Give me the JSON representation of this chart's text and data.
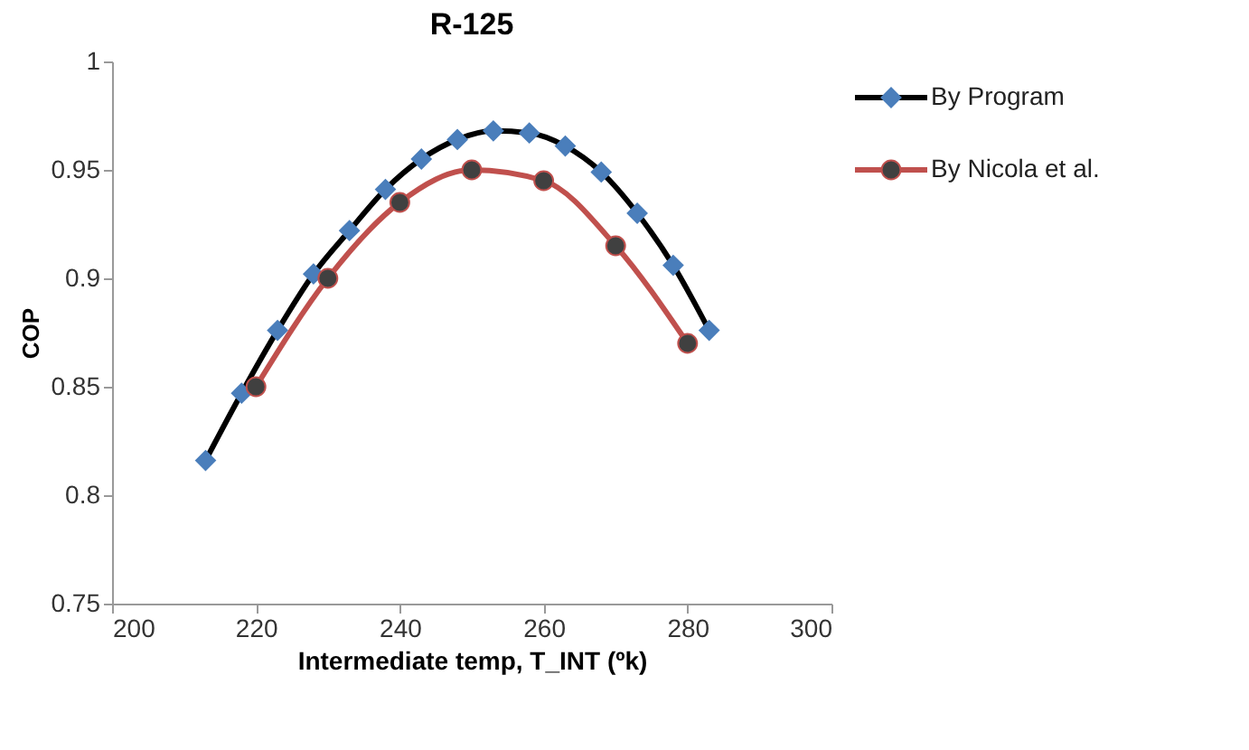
{
  "chart_data": {
    "type": "line",
    "title": "R-125",
    "xlabel": "Intermediate temp, T_INT (ºk)",
    "ylabel": "COP",
    "xlim": [
      200,
      300
    ],
    "xticks": [
      200,
      220,
      240,
      260,
      280,
      300
    ],
    "ylim": [
      0.75,
      1
    ],
    "yticks": [
      0.75,
      0.8,
      0.85,
      0.9,
      0.95,
      1
    ],
    "legend": "right",
    "series": [
      {
        "name": "By Program",
        "color": "#000000",
        "marker": "none",
        "x": [
          213,
          218,
          223,
          228,
          233,
          238,
          243,
          248,
          253,
          258,
          263,
          268,
          273,
          278,
          283
        ],
        "values": [
          0.816,
          0.847,
          0.876,
          0.902,
          0.922,
          0.941,
          0.955,
          0.964,
          0.968,
          0.967,
          0.961,
          0.949,
          0.93,
          0.906,
          0.876
        ]
      },
      {
        "type": "scatter",
        "color": "#4a7ebb",
        "marker": "diamond",
        "x": [
          213,
          218,
          223,
          228,
          233,
          238,
          243,
          248,
          253,
          258,
          263,
          268,
          273,
          278,
          283
        ],
        "values": [
          0.816,
          0.847,
          0.876,
          0.902,
          0.922,
          0.941,
          0.955,
          0.964,
          0.968,
          0.967,
          0.961,
          0.949,
          0.93,
          0.906,
          0.876
        ]
      },
      {
        "name": "By Nicola et al.",
        "color": "#c0504d",
        "marker": "none",
        "x": [
          220,
          230,
          240,
          250,
          260,
          270,
          280
        ],
        "values": [
          0.85,
          0.9,
          0.935,
          0.95,
          0.945,
          0.915,
          0.87
        ]
      },
      {
        "type": "scatter",
        "color": "#404040",
        "marker": "circle",
        "x": [
          220,
          230,
          240,
          250,
          260,
          270,
          280
        ],
        "values": [
          0.85,
          0.9,
          0.935,
          0.95,
          0.945,
          0.915,
          0.87
        ]
      }
    ]
  }
}
